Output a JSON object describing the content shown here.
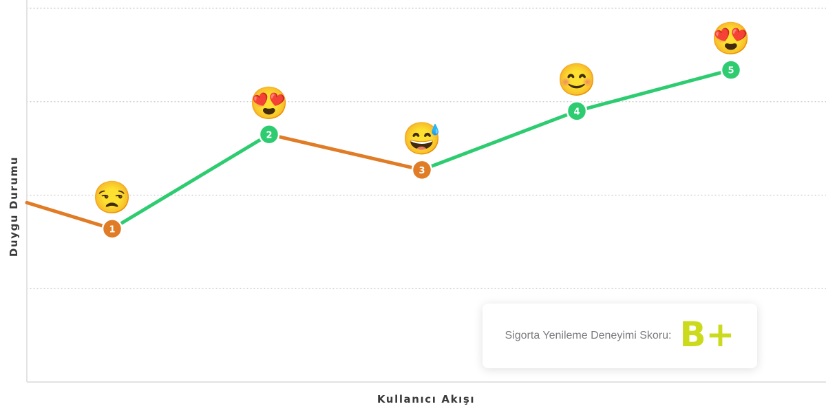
{
  "chart_data": {
    "type": "line",
    "title": "",
    "xlabel": "Kullanıcı Akışı",
    "ylabel": "Duygu Durumu",
    "ylim": [
      0,
      4
    ],
    "grid": true,
    "x": [
      0.5,
      1,
      2,
      3,
      4,
      5
    ],
    "y": [
      1.92,
      1.64,
      2.65,
      2.27,
      2.9,
      3.34
    ],
    "points": [
      {
        "label": "1",
        "emoji": "😒",
        "value": 1.64
      },
      {
        "label": "2",
        "emoji": "😍",
        "value": 2.65
      },
      {
        "label": "3",
        "emoji": "😅",
        "value": 2.27
      },
      {
        "label": "4",
        "emoji": "😊",
        "value": 2.9
      },
      {
        "label": "5",
        "emoji": "😍",
        "value": 3.34
      }
    ],
    "colors": {
      "decline": "#e07b26",
      "rise": "#2ecc71",
      "grid": "#c8c8c8",
      "axis": "#e3e3e3"
    }
  },
  "score": {
    "label": "Sigorta Yenileme Deneyimi Skoru:",
    "grade": "B+",
    "color": "#cbdb1c"
  }
}
